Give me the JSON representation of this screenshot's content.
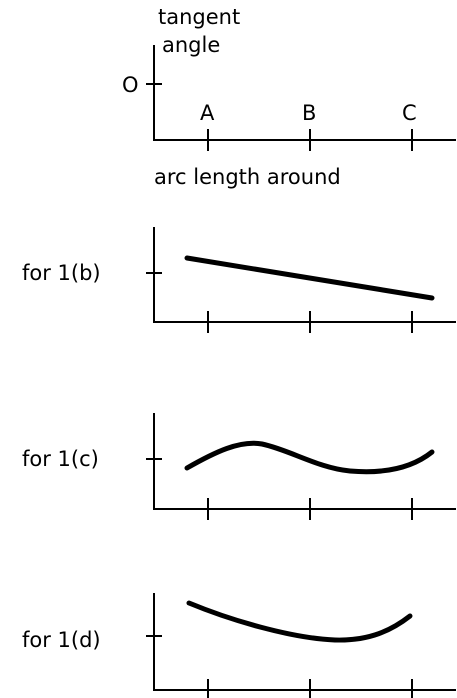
{
  "legend_panel": {
    "y_label_line1": "tangent",
    "y_label_line2": "angle",
    "zero_label": "O",
    "tick_labels": [
      "A",
      "B",
      "C"
    ],
    "x_label": "arc length around"
  },
  "panels": [
    {
      "label": "for 1(b)"
    },
    {
      "label": "for 1(c)"
    },
    {
      "label": "for 1(d)"
    }
  ]
}
